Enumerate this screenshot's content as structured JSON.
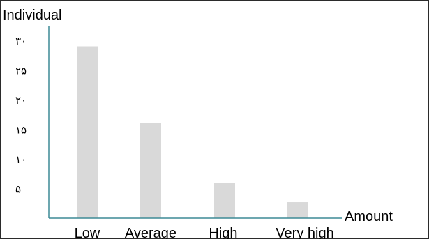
{
  "chart_data": {
    "type": "bar",
    "ylabel": "Individual",
    "xlabel": "Amount",
    "categories": [
      "Low",
      "Average",
      "High",
      "Very high"
    ],
    "values": [
      29,
      16,
      6,
      2.7
    ],
    "yticks": [
      {
        "value": 30,
        "label": "۳۰"
      },
      {
        "value": 25,
        "label": "۲۵"
      },
      {
        "value": 20,
        "label": "۲۰"
      },
      {
        "value": 15,
        "label": "۱۵"
      },
      {
        "value": 10,
        "label": "۱۰"
      },
      {
        "value": 5,
        "label": "۵"
      }
    ],
    "ylim": [
      0,
      30
    ],
    "grid": false,
    "colors": {
      "bar": "#d9d9d9",
      "axis": "#3d8a96",
      "frame": "#2b2b2b"
    }
  }
}
